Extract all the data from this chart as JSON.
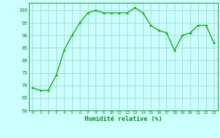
{
  "x": [
    0,
    1,
    2,
    3,
    4,
    5,
    6,
    7,
    8,
    9,
    10,
    11,
    12,
    13,
    14,
    15,
    16,
    17,
    18,
    19,
    20,
    21,
    22,
    23
  ],
  "y": [
    69,
    68,
    68,
    74,
    84,
    90,
    95,
    99,
    100,
    99,
    99,
    99,
    99,
    101,
    99,
    94,
    92,
    91,
    84,
    90,
    91,
    94,
    94,
    87
  ],
  "line_color": "#00cc00",
  "marker_color": "#00cc00",
  "bg_color": "#ccffff",
  "grid_color": "#88ddbb",
  "xlabel": "Humidité relative (%)",
  "xlabel_color": "#00aa00",
  "tick_color": "#00aa00",
  "ylim": [
    60,
    103
  ],
  "xlim": [
    -0.5,
    23.5
  ],
  "yticks": [
    60,
    65,
    70,
    75,
    80,
    85,
    90,
    95,
    100
  ],
  "xticks": [
    0,
    1,
    2,
    3,
    4,
    5,
    6,
    7,
    8,
    9,
    10,
    11,
    12,
    13,
    14,
    15,
    16,
    17,
    18,
    19,
    20,
    21,
    22,
    23
  ],
  "figsize": [
    3.2,
    2.0
  ],
  "dpi": 100
}
